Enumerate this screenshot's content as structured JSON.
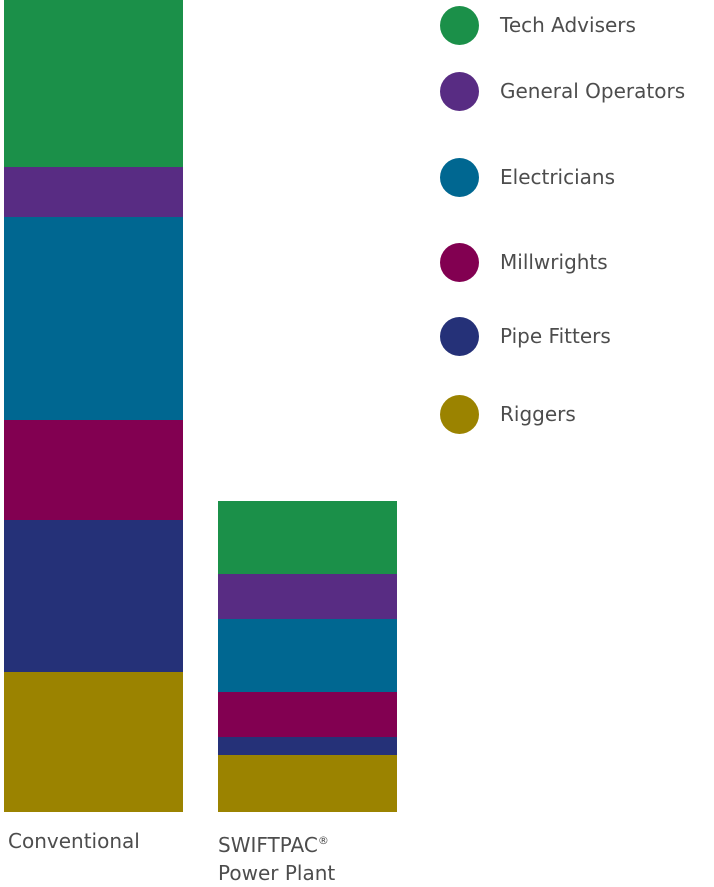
{
  "chart_data": {
    "type": "bar",
    "stacked": true,
    "categories": [
      "Conventional",
      "SWIFTPAC® Power Plant"
    ],
    "category_labels": [
      {
        "line1": "Conventional",
        "line1_sup": "",
        "line2": ""
      },
      {
        "line1": "SWIFTPAC",
        "line1_sup": "®",
        "line2": "Power Plant"
      }
    ],
    "series": [
      {
        "name": "Riggers",
        "color": "#9b8300",
        "values": [
          140,
          57
        ]
      },
      {
        "name": "Pipe Fitters",
        "color": "#253178",
        "values": [
          152,
          18
        ]
      },
      {
        "name": "Millwrights",
        "color": "#820051",
        "values": [
          100,
          45
        ]
      },
      {
        "name": "Electricians",
        "color": "#006791",
        "values": [
          203,
          73
        ]
      },
      {
        "name": "General Operators",
        "color": "#582c83",
        "values": [
          50,
          45
        ]
      },
      {
        "name": "Tech Advisers",
        "color": "#1b9049",
        "values": [
          167,
          73
        ]
      }
    ],
    "legend_order": [
      "Tech Advisers",
      "General Operators",
      "Electricians",
      "Millwrights",
      "Pipe Fitters",
      "Riggers"
    ],
    "legend_position": "right",
    "ylim": [
      0,
      812
    ],
    "axes_visible": false,
    "grid": false
  }
}
